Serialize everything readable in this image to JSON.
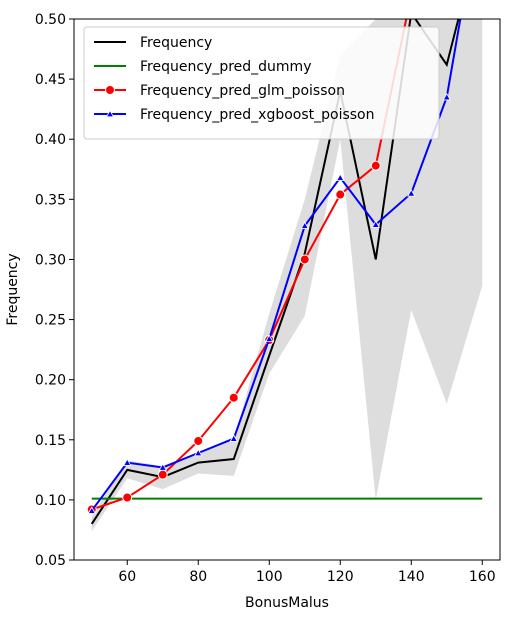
{
  "chart_data": {
    "type": "line",
    "title": "",
    "xlabel": "BonusMalus",
    "ylabel": "Frequency",
    "xlim": [
      45,
      165
    ],
    "ylim": [
      0.05,
      0.5
    ],
    "x_ticks": [
      60,
      80,
      100,
      120,
      140,
      160
    ],
    "y_ticks": [
      0.05,
      0.1,
      0.15,
      0.2,
      0.25,
      0.3,
      0.35,
      0.4,
      0.45,
      0.5
    ],
    "x_tick_labels": [
      "60",
      "80",
      "100",
      "120",
      "140",
      "160"
    ],
    "y_tick_labels": [
      "0.05",
      "0.10",
      "0.15",
      "0.20",
      "0.25",
      "0.30",
      "0.35",
      "0.40",
      "0.45",
      "0.50"
    ],
    "grid": false,
    "legend_position": "top-left",
    "confidence_band": {
      "color": "#dddddd",
      "x": [
        50,
        60,
        70,
        80,
        90,
        100,
        110,
        120,
        130,
        140,
        150,
        160
      ],
      "lower": [
        0.074,
        0.118,
        0.109,
        0.122,
        0.12,
        0.205,
        0.253,
        0.4,
        0.1,
        0.258,
        0.18,
        0.278
      ],
      "upper": [
        0.086,
        0.133,
        0.128,
        0.14,
        0.15,
        0.255,
        0.35,
        0.47,
        0.5,
        0.5,
        0.5,
        0.5
      ]
    },
    "series": [
      {
        "name": "Frequency",
        "color": "#000000",
        "marker": "none",
        "x": [
          50,
          60,
          70,
          80,
          90,
          100,
          110,
          120,
          130,
          140,
          150,
          155
        ],
        "y": [
          0.08,
          0.125,
          0.119,
          0.131,
          0.134,
          0.22,
          0.305,
          0.44,
          0.3,
          0.505,
          0.462,
          0.52
        ]
      },
      {
        "name": "Frequency_pred_dummy",
        "color": "#008000",
        "marker": "none",
        "x": [
          50,
          160
        ],
        "y": [
          0.101,
          0.101
        ]
      },
      {
        "name": "Frequency_pred_glm_poisson",
        "color": "#ff0000",
        "marker": "circle",
        "x": [
          50,
          60,
          70,
          80,
          90,
          100,
          110,
          120,
          130,
          140
        ],
        "y": [
          0.092,
          0.102,
          0.121,
          0.149,
          0.185,
          0.233,
          0.3,
          0.354,
          0.378,
          0.52
        ]
      },
      {
        "name": "Frequency_pred_xgboost_poisson",
        "color": "#0000ff",
        "marker": "triangle",
        "x": [
          50,
          60,
          70,
          80,
          90,
          100,
          110,
          120,
          130,
          140,
          150,
          155
        ],
        "y": [
          0.091,
          0.131,
          0.127,
          0.139,
          0.151,
          0.234,
          0.328,
          0.368,
          0.329,
          0.355,
          0.435,
          0.52
        ]
      }
    ]
  }
}
